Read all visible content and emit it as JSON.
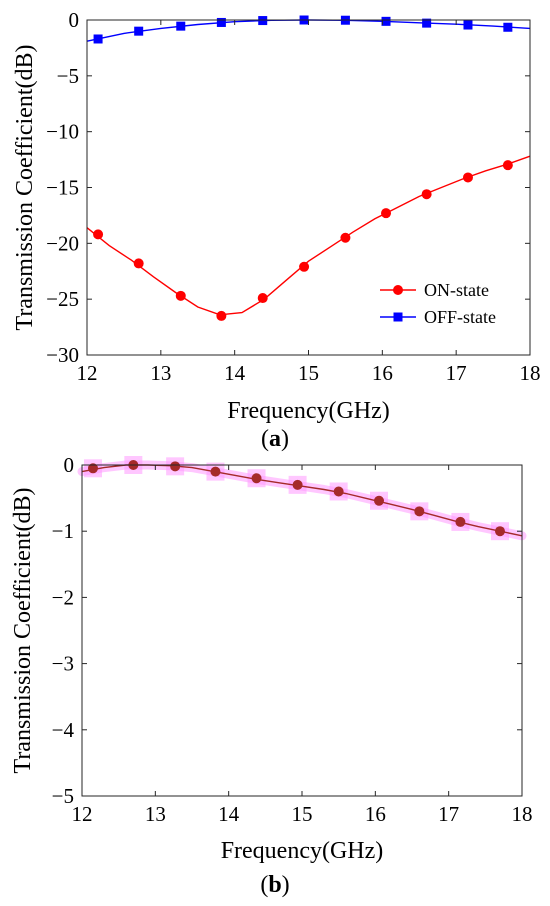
{
  "chart_data": [
    {
      "panel": "a",
      "caption": "a",
      "type": "line",
      "xlabel": "Frequency(GHz)",
      "ylabel": "Transmission Coefficient(dB)",
      "xlim": [
        12,
        18
      ],
      "ylim": [
        -30,
        0
      ],
      "xticks": [
        12,
        13,
        14,
        15,
        16,
        17,
        18
      ],
      "yticks": [
        0,
        -5,
        -10,
        -15,
        -20,
        -25,
        -30
      ],
      "grid": false,
      "legend_position": "bottom-right",
      "series": [
        {
          "name": "ON-state",
          "color": "#ff0000",
          "marker": "circle",
          "curve": [
            [
              12.0,
              -18.6
            ],
            [
              12.3,
              -20.2
            ],
            [
              12.6,
              -21.5
            ],
            [
              12.9,
              -23.0
            ],
            [
              13.2,
              -24.4
            ],
            [
              13.5,
              -25.7
            ],
            [
              13.8,
              -26.4
            ],
            [
              14.1,
              -26.2
            ],
            [
              14.4,
              -25.0
            ],
            [
              14.7,
              -23.3
            ],
            [
              15.0,
              -21.6
            ],
            [
              15.3,
              -20.3
            ],
            [
              15.6,
              -19.0
            ],
            [
              15.9,
              -17.8
            ],
            [
              16.2,
              -16.8
            ],
            [
              16.5,
              -15.8
            ],
            [
              16.8,
              -15.0
            ],
            [
              17.1,
              -14.2
            ],
            [
              17.4,
              -13.5
            ],
            [
              17.7,
              -12.9
            ],
            [
              18.0,
              -12.2
            ]
          ],
          "markers": [
            [
              12.15,
              -19.2
            ],
            [
              12.7,
              -21.8
            ],
            [
              13.27,
              -24.7
            ],
            [
              13.82,
              -26.5
            ],
            [
              14.38,
              -24.9
            ],
            [
              14.94,
              -22.1
            ],
            [
              15.5,
              -19.5
            ],
            [
              16.05,
              -17.3
            ],
            [
              16.6,
              -15.6
            ],
            [
              17.16,
              -14.1
            ],
            [
              17.7,
              -13.0
            ]
          ]
        },
        {
          "name": "OFF-state",
          "color": "#0000ff",
          "marker": "square",
          "curve": [
            [
              12.0,
              -1.9
            ],
            [
              12.5,
              -1.2
            ],
            [
              13.0,
              -0.75
            ],
            [
              13.5,
              -0.4
            ],
            [
              14.0,
              -0.15
            ],
            [
              14.5,
              -0.03
            ],
            [
              15.0,
              0.0
            ],
            [
              15.5,
              -0.03
            ],
            [
              16.0,
              -0.12
            ],
            [
              16.5,
              -0.25
            ],
            [
              17.0,
              -0.38
            ],
            [
              17.5,
              -0.55
            ],
            [
              18.0,
              -0.75
            ]
          ],
          "markers": [
            [
              12.15,
              -1.7
            ],
            [
              12.7,
              -1.0
            ],
            [
              13.27,
              -0.55
            ],
            [
              13.82,
              -0.22
            ],
            [
              14.38,
              -0.05
            ],
            [
              14.94,
              0.0
            ],
            [
              15.5,
              -0.02
            ],
            [
              16.05,
              -0.12
            ],
            [
              16.6,
              -0.28
            ],
            [
              17.16,
              -0.45
            ],
            [
              17.7,
              -0.65
            ]
          ]
        }
      ]
    },
    {
      "panel": "b",
      "caption": "b",
      "type": "line",
      "xlabel": "Frequency(GHz)",
      "ylabel": "Transmission Coefficient(dB)",
      "xlim": [
        12,
        18
      ],
      "ylim": [
        -5,
        0
      ],
      "xticks": [
        12,
        13,
        14,
        15,
        16,
        17,
        18
      ],
      "yticks": [
        0,
        -1,
        -2,
        -3,
        -4,
        -5
      ],
      "grid": false,
      "legend_position": "none",
      "series": [
        {
          "color": "#a52a2a",
          "marker": "circle",
          "highlight": "#ff99ff",
          "curve": [
            [
              12.0,
              -0.1
            ],
            [
              12.3,
              -0.04
            ],
            [
              12.6,
              0.0
            ],
            [
              12.9,
              0.0
            ],
            [
              13.2,
              -0.01
            ],
            [
              13.5,
              -0.04
            ],
            [
              13.8,
              -0.1
            ],
            [
              14.1,
              -0.16
            ],
            [
              14.4,
              -0.22
            ],
            [
              14.7,
              -0.27
            ],
            [
              15.0,
              -0.32
            ],
            [
              15.3,
              -0.37
            ],
            [
              15.6,
              -0.43
            ],
            [
              15.9,
              -0.51
            ],
            [
              16.2,
              -0.59
            ],
            [
              16.5,
              -0.67
            ],
            [
              16.8,
              -0.76
            ],
            [
              17.1,
              -0.85
            ],
            [
              17.4,
              -0.93
            ],
            [
              17.7,
              -1.0
            ],
            [
              18.0,
              -1.07
            ]
          ],
          "markers": [
            [
              12.15,
              -0.05
            ],
            [
              12.7,
              0.0
            ],
            [
              13.27,
              -0.02
            ],
            [
              13.82,
              -0.1
            ],
            [
              14.38,
              -0.2
            ],
            [
              14.94,
              -0.3
            ],
            [
              15.5,
              -0.4
            ],
            [
              16.05,
              -0.54
            ],
            [
              16.6,
              -0.7
            ],
            [
              17.16,
              -0.86
            ],
            [
              17.7,
              -1.0
            ]
          ]
        }
      ]
    }
  ]
}
